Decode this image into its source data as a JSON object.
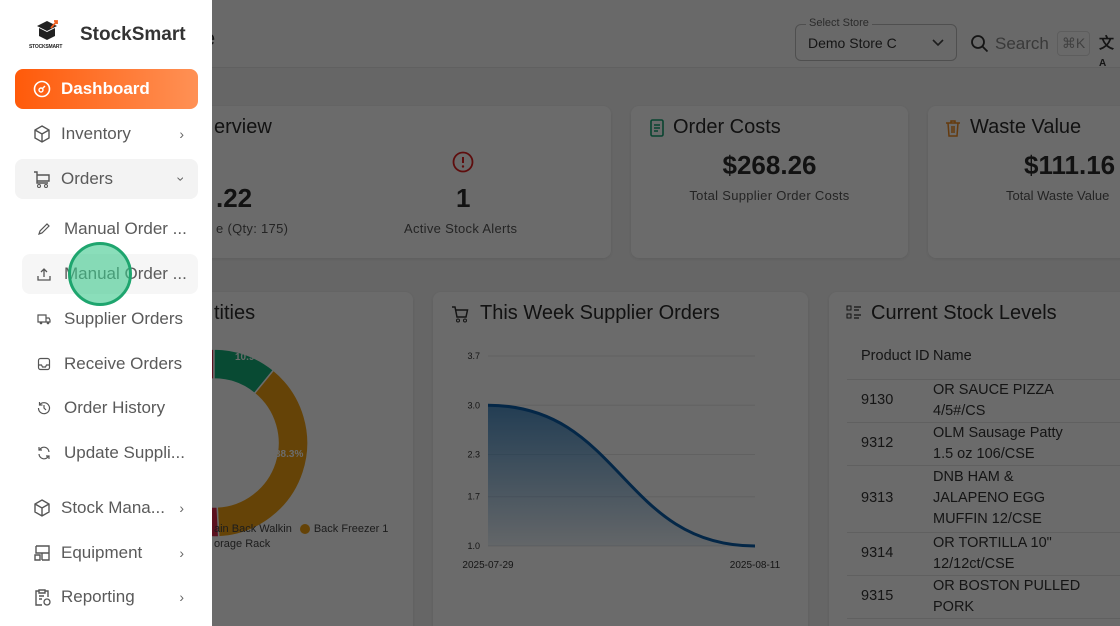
{
  "sidebar": {
    "brand": "StockSmart",
    "logo_text": "STOCKSMART",
    "dashboard": "Dashboard",
    "inventory": "Inventory",
    "orders": "Orders",
    "sub_items": [
      "Manual Order ...",
      "Manual Order ...",
      "Supplier Orders",
      "Receive Orders",
      "Order History",
      "Update Suppli..."
    ],
    "stock": "Stock Mana...",
    "equipment": "Equipment",
    "reporting": "Reporting"
  },
  "header": {
    "title_fragment": "e",
    "store_label": "Select Store",
    "store_value": "Demo Store C",
    "search_placeholder": "Search",
    "shortcut": "⌘K"
  },
  "overview": {
    "title_fragment": "erview",
    "value_fragment": ".22",
    "caption_fragment": "e (Qty: 175)",
    "alerts_value": "1",
    "alerts_label": "Active Stock Alerts"
  },
  "order_costs": {
    "title": "Order Costs",
    "value": "$268.26",
    "label": "Total Supplier Order Costs"
  },
  "waste": {
    "title": "Waste Value",
    "value": "$111.16",
    "label": "Total Waste Value"
  },
  "quantities": {
    "title_fragment": "tities",
    "legend": [
      "ain Back Walkin",
      "Back Freezer 1",
      "orage Rack"
    ],
    "colors": {
      "green": "#12b07a",
      "gold": "#f0a010",
      "red": "#d8284a"
    }
  },
  "chart_data": {
    "type": "area",
    "title": "This Week Supplier Orders",
    "x": [
      "2025-07-29",
      "2025-08-11"
    ],
    "values": [
      3.0,
      1.0
    ],
    "ylim": [
      1.0,
      3.7
    ],
    "yticks": [
      "3.7",
      "3.0",
      "2.3",
      "1.7",
      "1.0"
    ],
    "color": "#1a6fb5",
    "donut": {
      "labels": [
        "10.9%",
        "38.3%"
      ],
      "values": [
        10.9,
        38.3
      ]
    }
  },
  "stock_levels": {
    "title": "Current Stock Levels",
    "columns": [
      "Product ID",
      "Name"
    ],
    "rows": [
      [
        "9130",
        "OR SAUCE PIZZA 4/5#/CS"
      ],
      [
        "9312",
        "OLM Sausage Patty 1.5 oz 106/CSE"
      ],
      [
        "9313",
        "DNB HAM & JALAPENO EGG MUFFIN 12/CSE"
      ],
      [
        "9314",
        "OR TORTILLA 10\" 12/12ct/CSE"
      ],
      [
        "9315",
        "OR BOSTON PULLED PORK"
      ]
    ]
  }
}
